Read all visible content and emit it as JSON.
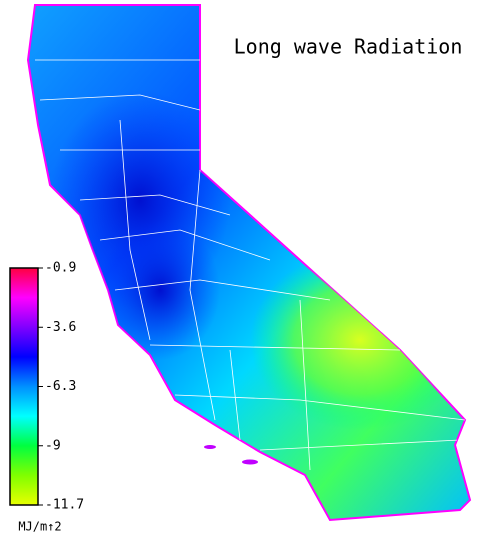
{
  "title": "Long wave Radiation",
  "colorbar": {
    "lim": [
      -11.7,
      -0.9
    ],
    "ticks": [
      -0.9,
      -3.6,
      -6.3,
      -9.0,
      -11.7
    ],
    "unit": "MJ/m↑2",
    "colors": [
      "#e8ff00",
      "#80ff00",
      "#00ff40",
      "#00ffff",
      "#0090ff",
      "#0000ff",
      "#8000ff",
      "#ff00ff",
      "#ff0040"
    ]
  }
}
